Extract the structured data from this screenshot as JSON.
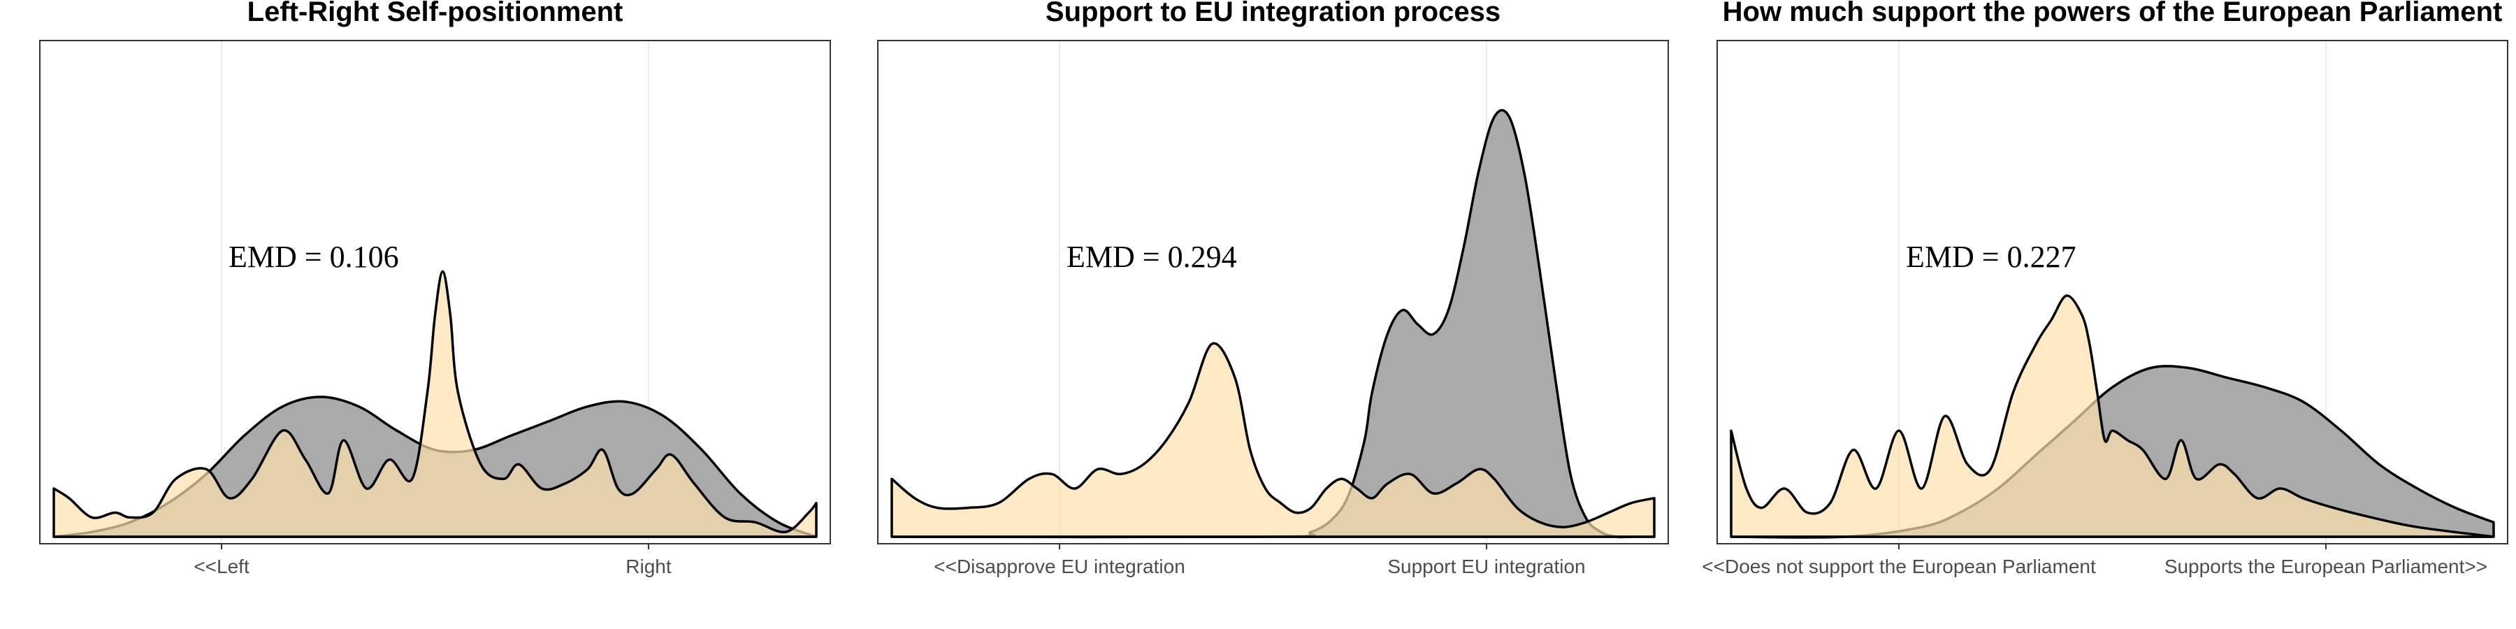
{
  "chart_data": [
    {
      "type": "area",
      "title": "Left-Right Self-positionment",
      "annotation": "EMD = 0.106",
      "x_ticks": [
        "<<Left",
        "Right"
      ],
      "x_tick_positions": [
        0.22,
        0.78
      ],
      "xlim": [
        0,
        1
      ],
      "ylim": [
        0,
        1
      ],
      "grid": true,
      "series": [
        {
          "fill": "#aaaaaa",
          "x": [
            0,
            0.05,
            0.1,
            0.15,
            0.2,
            0.25,
            0.3,
            0.35,
            0.4,
            0.45,
            0.5,
            0.55,
            0.6,
            0.65,
            0.7,
            0.75,
            0.8,
            0.85,
            0.9,
            0.95,
            1
          ],
          "y": [
            0.0,
            0.01,
            0.03,
            0.07,
            0.13,
            0.21,
            0.27,
            0.29,
            0.27,
            0.22,
            0.18,
            0.18,
            0.21,
            0.24,
            0.27,
            0.28,
            0.25,
            0.18,
            0.09,
            0.03,
            0.0
          ]
        },
        {
          "fill": "#fce0aa",
          "x": [
            0,
            0.02,
            0.05,
            0.08,
            0.1,
            0.13,
            0.16,
            0.2,
            0.23,
            0.26,
            0.3,
            0.33,
            0.36,
            0.38,
            0.41,
            0.44,
            0.47,
            0.49,
            0.5,
            0.51,
            0.52,
            0.53,
            0.56,
            0.59,
            0.61,
            0.64,
            0.67,
            0.7,
            0.72,
            0.74,
            0.76,
            0.79,
            0.81,
            0.84,
            0.88,
            0.92,
            0.96,
            0.99,
            1
          ],
          "y": [
            0.1,
            0.08,
            0.04,
            0.05,
            0.04,
            0.05,
            0.12,
            0.14,
            0.08,
            0.12,
            0.22,
            0.16,
            0.09,
            0.2,
            0.1,
            0.16,
            0.12,
            0.3,
            0.46,
            0.55,
            0.46,
            0.3,
            0.15,
            0.12,
            0.15,
            0.1,
            0.11,
            0.14,
            0.18,
            0.1,
            0.09,
            0.14,
            0.17,
            0.11,
            0.04,
            0.03,
            0.01,
            0.05,
            0.07
          ]
        }
      ]
    },
    {
      "type": "area",
      "title": "Support to EU integration process",
      "annotation": "EMD = 0.294",
      "x_ticks": [
        "<<Disapprove EU integration",
        "Support EU integration"
      ],
      "x_tick_positions": [
        0.22,
        0.78
      ],
      "xlim": [
        0,
        1
      ],
      "ylim": [
        0,
        1
      ],
      "grid": true,
      "series": [
        {
          "fill": "#aaaaaa",
          "x": [
            0,
            0.5,
            0.55,
            0.58,
            0.6,
            0.62,
            0.63,
            0.65,
            0.67,
            0.69,
            0.71,
            0.73,
            0.75,
            0.77,
            0.79,
            0.81,
            0.83,
            0.85,
            0.87,
            0.89,
            0.91,
            0.93,
            0.95,
            0.97,
            1
          ],
          "y": [
            0,
            0,
            0.01,
            0.04,
            0.09,
            0.2,
            0.3,
            0.42,
            0.47,
            0.44,
            0.42,
            0.47,
            0.6,
            0.76,
            0.87,
            0.87,
            0.75,
            0.55,
            0.33,
            0.13,
            0.04,
            0.01,
            0.0,
            0.0,
            0.0
          ]
        },
        {
          "fill": "#fce0aa",
          "x": [
            0,
            0.03,
            0.06,
            0.1,
            0.14,
            0.18,
            0.21,
            0.24,
            0.27,
            0.3,
            0.33,
            0.36,
            0.39,
            0.42,
            0.45,
            0.47,
            0.49,
            0.51,
            0.53,
            0.55,
            0.57,
            0.59,
            0.61,
            0.63,
            0.65,
            0.68,
            0.71,
            0.74,
            0.77,
            0.79,
            0.82,
            0.85,
            0.88,
            0.91,
            0.94,
            0.97,
            1
          ],
          "y": [
            0.12,
            0.08,
            0.06,
            0.06,
            0.07,
            0.12,
            0.13,
            0.1,
            0.14,
            0.13,
            0.15,
            0.2,
            0.28,
            0.4,
            0.33,
            0.18,
            0.1,
            0.07,
            0.05,
            0.06,
            0.1,
            0.12,
            0.1,
            0.08,
            0.11,
            0.13,
            0.09,
            0.11,
            0.14,
            0.12,
            0.06,
            0.03,
            0.02,
            0.03,
            0.05,
            0.07,
            0.08
          ]
        }
      ]
    },
    {
      "type": "area",
      "title": "How much support the powers of the European Parliament",
      "annotation": "EMD = 0.227",
      "x_ticks": [
        "<<Does not support the European Parliament",
        "Supports the European Parliament>>"
      ],
      "x_tick_positions": [
        0.22,
        0.78
      ],
      "xlim": [
        0,
        1
      ],
      "ylim": [
        0,
        1
      ],
      "grid": true,
      "series": [
        {
          "fill": "#aaaaaa",
          "x": [
            0,
            0.15,
            0.25,
            0.3,
            0.35,
            0.4,
            0.45,
            0.5,
            0.55,
            0.6,
            0.65,
            0.7,
            0.75,
            0.8,
            0.85,
            0.9,
            0.95,
            1
          ],
          "y": [
            0,
            0.0,
            0.02,
            0.05,
            0.1,
            0.17,
            0.24,
            0.31,
            0.35,
            0.35,
            0.33,
            0.31,
            0.28,
            0.22,
            0.15,
            0.1,
            0.06,
            0.03
          ]
        },
        {
          "fill": "#fce0aa",
          "x": [
            0,
            0.02,
            0.04,
            0.07,
            0.1,
            0.13,
            0.16,
            0.19,
            0.22,
            0.25,
            0.28,
            0.31,
            0.34,
            0.37,
            0.4,
            0.42,
            0.44,
            0.46,
            0.47,
            0.48,
            0.49,
            0.5,
            0.52,
            0.54,
            0.57,
            0.59,
            0.61,
            0.64,
            0.66,
            0.69,
            0.72,
            0.75,
            0.79,
            0.84,
            0.9,
            1
          ],
          "y": [
            0.22,
            0.1,
            0.06,
            0.1,
            0.05,
            0.07,
            0.18,
            0.1,
            0.22,
            0.1,
            0.25,
            0.15,
            0.14,
            0.3,
            0.4,
            0.45,
            0.5,
            0.46,
            0.4,
            0.3,
            0.2,
            0.22,
            0.2,
            0.18,
            0.12,
            0.2,
            0.12,
            0.15,
            0.13,
            0.08,
            0.1,
            0.08,
            0.06,
            0.04,
            0.02,
            0.0
          ]
        }
      ]
    }
  ]
}
